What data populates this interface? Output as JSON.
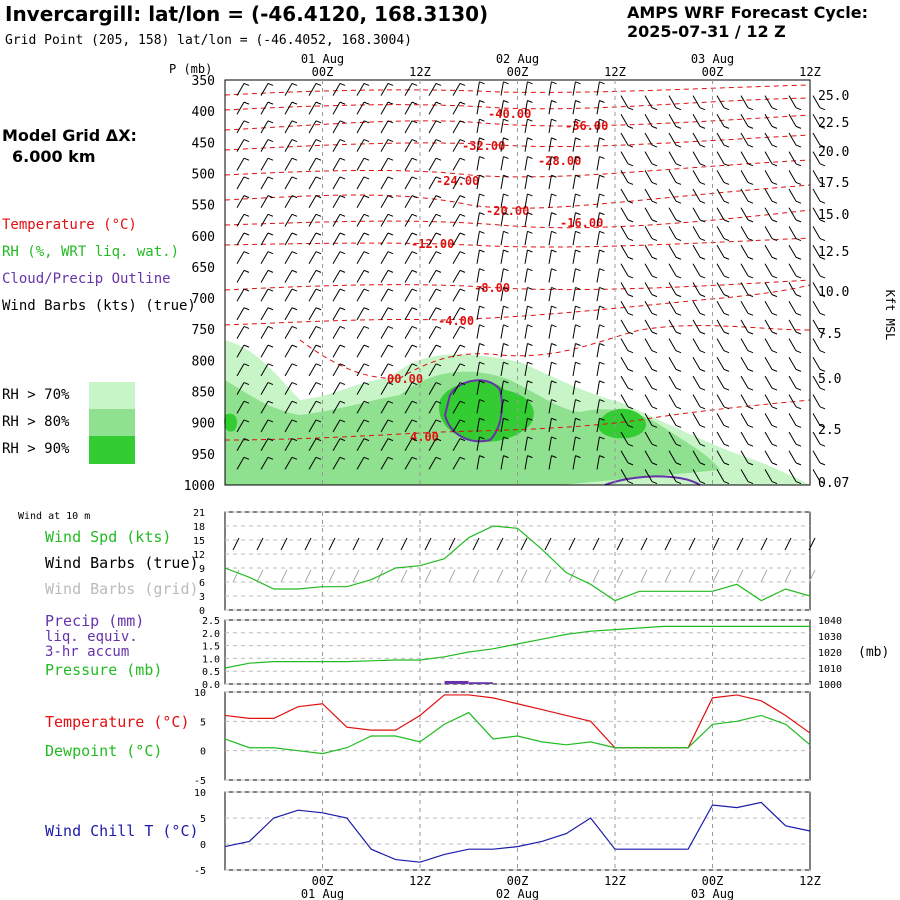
{
  "header": {
    "title": "Invercargill:  lat/lon = (-46.4120, 168.3130)",
    "subtitle": "Grid Point (205, 158) lat/lon = (-46.4052, 168.3004)",
    "cycle_line1": "AMPS WRF Forecast Cycle:",
    "cycle_line2": "2025-07-31 / 12  Z"
  },
  "model_grid": {
    "label": "Model Grid ΔX:",
    "value": "6.000 km"
  },
  "colors": {
    "temperature": "#e01010",
    "rh": "#22bb22",
    "cloud": "#6633aa",
    "pressure": "#22bb22",
    "windchill": "#1a1aaa",
    "rh70": "#c8f5c8",
    "rh80": "#8fe08f",
    "rh90": "#33cc33"
  },
  "legend": {
    "temperature": "Temperature (°C)",
    "rh": "RH (%, WRT liq. wat.)",
    "cloud": "Cloud/Precip Outline",
    "barbs": "Wind Barbs (kts) (true)",
    "rh70": "RH > 70%",
    "rh80": "RH > 80%",
    "rh90": "RH > 90%"
  },
  "time_axis": {
    "top_dates": [
      "01 Aug",
      "02 Aug",
      "03 Aug"
    ],
    "bottom_dates": [
      "01 Aug",
      "02 Aug",
      "03 Aug"
    ],
    "ticks": [
      "00Z",
      "12Z",
      "00Z",
      "12Z",
      "00Z",
      "12Z"
    ]
  },
  "chart_data": [
    {
      "type": "heatmap",
      "subtype": "time-height cross section",
      "ylabel": "P (mb)",
      "y2label": "Kft MSL",
      "x_range_hours_from_cycle": [
        0,
        72
      ],
      "ylim": [
        1000,
        350
      ],
      "pressure_ticks": [
        350,
        400,
        450,
        500,
        550,
        600,
        650,
        700,
        750,
        800,
        850,
        900,
        950,
        1000
      ],
      "height_ticks": [
        "25.0",
        "22.5",
        "20.0",
        "17.5",
        "15.0",
        "12.5",
        "10.0",
        "7.5",
        "5.0",
        "2.5",
        "0.07"
      ],
      "temperature_contour_labels": [
        "-40.00",
        "-36.00",
        "-32.00",
        "-28.00",
        "-24.00",
        "-20.00",
        "-16.00",
        "-12.00",
        "-8.00",
        "-4.00",
        "00.00",
        "4.00"
      ],
      "rh_shading": [
        "RH > 70%",
        "RH > 80%",
        "RH > 90%"
      ],
      "wind_barbs": "kts (true)"
    },
    {
      "type": "line",
      "label": "Wind at 10 m",
      "series_labels": [
        "Wind Spd (kts)",
        "Wind Barbs (true)",
        "Wind Barbs (grid)"
      ],
      "ylim": [
        0,
        21
      ],
      "yticks": [
        0,
        3,
        6,
        9,
        12,
        15,
        18,
        21
      ],
      "x": [
        0,
        3,
        6,
        9,
        12,
        15,
        18,
        21,
        24,
        27,
        30,
        33,
        36,
        39,
        42,
        45,
        48,
        51,
        54,
        57,
        60,
        63,
        66,
        69,
        72
      ],
      "values": [
        9,
        7,
        4.5,
        4.5,
        5,
        5,
        6.5,
        9,
        9.5,
        11,
        15.5,
        18,
        17.5,
        13,
        8,
        5.5,
        2,
        4,
        4,
        4,
        4,
        5.5,
        2,
        4.5,
        3
      ]
    },
    {
      "type": "line",
      "series_labels": [
        "Precip (mm)",
        "liq. equiv.",
        "3-hr accum",
        "Pressure (mb)"
      ],
      "ylim_left": [
        0,
        2.5
      ],
      "yticks_left": [
        "0.0",
        "0.5",
        "1.0",
        "1.5",
        "2.0",
        "2.5"
      ],
      "ylim_right": [
        1000,
        1040
      ],
      "yticks_right": [
        1000,
        1010,
        1020,
        1030,
        1040
      ],
      "right_unit": "(mb)",
      "x": [
        0,
        3,
        6,
        9,
        12,
        15,
        18,
        21,
        24,
        27,
        30,
        33,
        36,
        39,
        42,
        45,
        48,
        51,
        54,
        57,
        60,
        63,
        66,
        69,
        72
      ],
      "pressure": [
        1010,
        1013,
        1014,
        1014,
        1014,
        1014,
        1014.5,
        1015,
        1015,
        1017,
        1020,
        1022,
        1025,
        1028,
        1031,
        1033,
        1034,
        1035,
        1036,
        1036,
        1036,
        1036,
        1036,
        1036,
        1036
      ],
      "precip_bars": [
        {
          "x": 28.5,
          "value": 0.08
        },
        {
          "x": 31.5,
          "value": 0.03
        }
      ]
    },
    {
      "type": "line",
      "series_labels": [
        "Temperature (°C)",
        "Dewpoint (°C)"
      ],
      "ylim": [
        -5,
        10
      ],
      "yticks": [
        -5,
        0,
        5,
        10
      ],
      "x": [
        0,
        3,
        6,
        9,
        12,
        15,
        18,
        21,
        24,
        27,
        30,
        33,
        36,
        39,
        42,
        45,
        48,
        51,
        54,
        57,
        60,
        63,
        66,
        69,
        72
      ],
      "series": [
        {
          "name": "Temperature (°C)",
          "values": [
            6,
            5.5,
            5.5,
            7.5,
            8,
            4,
            3.5,
            3.5,
            6,
            9.5,
            9.5,
            9,
            8,
            7,
            6,
            5,
            0.5,
            0.5,
            0.5,
            0.5,
            9,
            9.5,
            8.5,
            6,
            3
          ]
        },
        {
          "name": "Dewpoint (°C)",
          "values": [
            2,
            0.5,
            0.5,
            0,
            -0.5,
            0.5,
            2.5,
            2.5,
            1.5,
            4.5,
            6.5,
            2,
            2.5,
            1.5,
            1,
            1.5,
            0.5,
            0.5,
            0.5,
            0.5,
            4.5,
            5,
            6,
            4.5,
            1
          ]
        }
      ]
    },
    {
      "type": "line",
      "series_labels": [
        "Wind Chill T (°C)"
      ],
      "ylim": [
        -5,
        10
      ],
      "yticks": [
        -5,
        0,
        5,
        10
      ],
      "x": [
        0,
        3,
        6,
        9,
        12,
        15,
        18,
        21,
        24,
        27,
        30,
        33,
        36,
        39,
        42,
        45,
        48,
        51,
        54,
        57,
        60,
        63,
        66,
        69,
        72
      ],
      "values": [
        -0.5,
        0.5,
        5,
        6.5,
        6,
        5,
        -1,
        -3,
        -3.5,
        -2,
        -1,
        -1,
        -0.5,
        0.5,
        2,
        5,
        -1,
        -1,
        -1,
        -1,
        7.5,
        7,
        8,
        3.5,
        2.5
      ]
    }
  ]
}
